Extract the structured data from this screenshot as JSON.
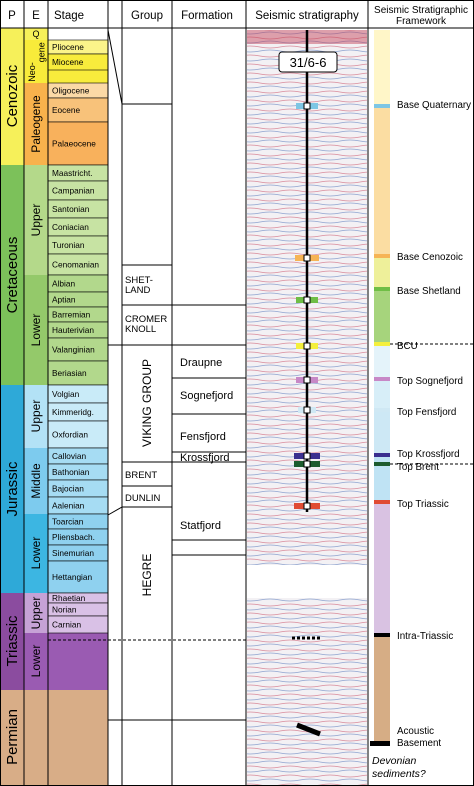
{
  "headers": {
    "p": "P",
    "e": "E",
    "stage": "Stage",
    "group": "Group",
    "formation": "Formation",
    "seismic": "Seismic stratigraphy",
    "framework_line1": "Seismic Stratigraphic",
    "framework_line2": "Framework"
  },
  "colors": {
    "cenozoic": "#f6f05a",
    "neogene": "#f8eb3a",
    "paleogene": "#f8b24c",
    "cretaceous": "#7cc15a",
    "cret_lower": "#94c96a",
    "cret_upper": "#b4d98a",
    "jurassic": "#2ea9d8",
    "jur_lower": "#3cb6e2",
    "jur_middle": "#7dcbee",
    "jur_upper": "#b3e2f6",
    "triassic": "#8b4c9f",
    "tri_lower": "#9a5bb2",
    "tri_upper": "#c6a2d6",
    "permian": "#d8ad87"
  },
  "periods": [
    "Cenozoic",
    "Cretaceous",
    "Jurassic",
    "Triassic",
    "Permian"
  ],
  "epochs": {
    "q": "Q",
    "neogene": "Neo-\ngene",
    "paleogene": "Paleogene",
    "cret_upper": "Upper",
    "cret_lower": "Lower",
    "jur_upper": "Upper",
    "jur_middle": "Middle",
    "jur_lower": "Lower",
    "tri_upper": "Upper",
    "tri_lower": "Lower"
  },
  "stages": [
    "Pliocene",
    "Miocene",
    "Oligocene",
    "Eocene",
    "Palaeocene",
    "Maastricht.",
    "Campanian",
    "Santonian",
    "Coniacian",
    "Turonian",
    "Cenomanian",
    "Albian",
    "Aptian",
    "Barremian",
    "Hauterivian",
    "Valanginian",
    "Beriasian",
    "Volgian",
    "Kimmeridg.",
    "Oxfordian",
    "Callovian",
    "Bathonian",
    "Bajocian",
    "Aalenian",
    "Toarcian",
    "Pliensbach.",
    "Sinemurian",
    "Hettangian",
    "Rhaetian",
    "Norian",
    "Carnian"
  ],
  "groups": {
    "shetland": "SHET-\nLAND",
    "cromer_knoll": "CROMER\nKNOLL",
    "viking": "VIKING GROUP",
    "brent": "BRENT",
    "dunlin": "DUNLIN",
    "hegre": "HEGRE"
  },
  "formations": [
    "Draupne",
    "Sognefjord",
    "Fensfjord",
    "Krossfjord",
    "Statfjord"
  ],
  "well_label": "31/6-6",
  "horizons": [
    {
      "name": "Base Quaternary",
      "color": "#7dc6e4"
    },
    {
      "name": "Base Cenozoic",
      "color": "#f6b455"
    },
    {
      "name": "Base Shetland",
      "color": "#6fbe46"
    },
    {
      "name": "BCU",
      "color": "#f4ef3c"
    },
    {
      "name": "Top Sognefjord",
      "color": "#c788c7"
    },
    {
      "name": "Top Fensfjord",
      "color": "#cfe8f4"
    },
    {
      "name": "Top Krossfjord",
      "color": "#3a2f8f"
    },
    {
      "name": "Top Brent",
      "color": "#1d5c2e"
    },
    {
      "name": "Top Triassic",
      "color": "#e04b33"
    },
    {
      "name": "Intra-Triassic",
      "color": "#000000"
    },
    {
      "name": "Acoustic\nBasement",
      "color": "#000000"
    }
  ],
  "framework_note": "Devonian\nsediments?"
}
